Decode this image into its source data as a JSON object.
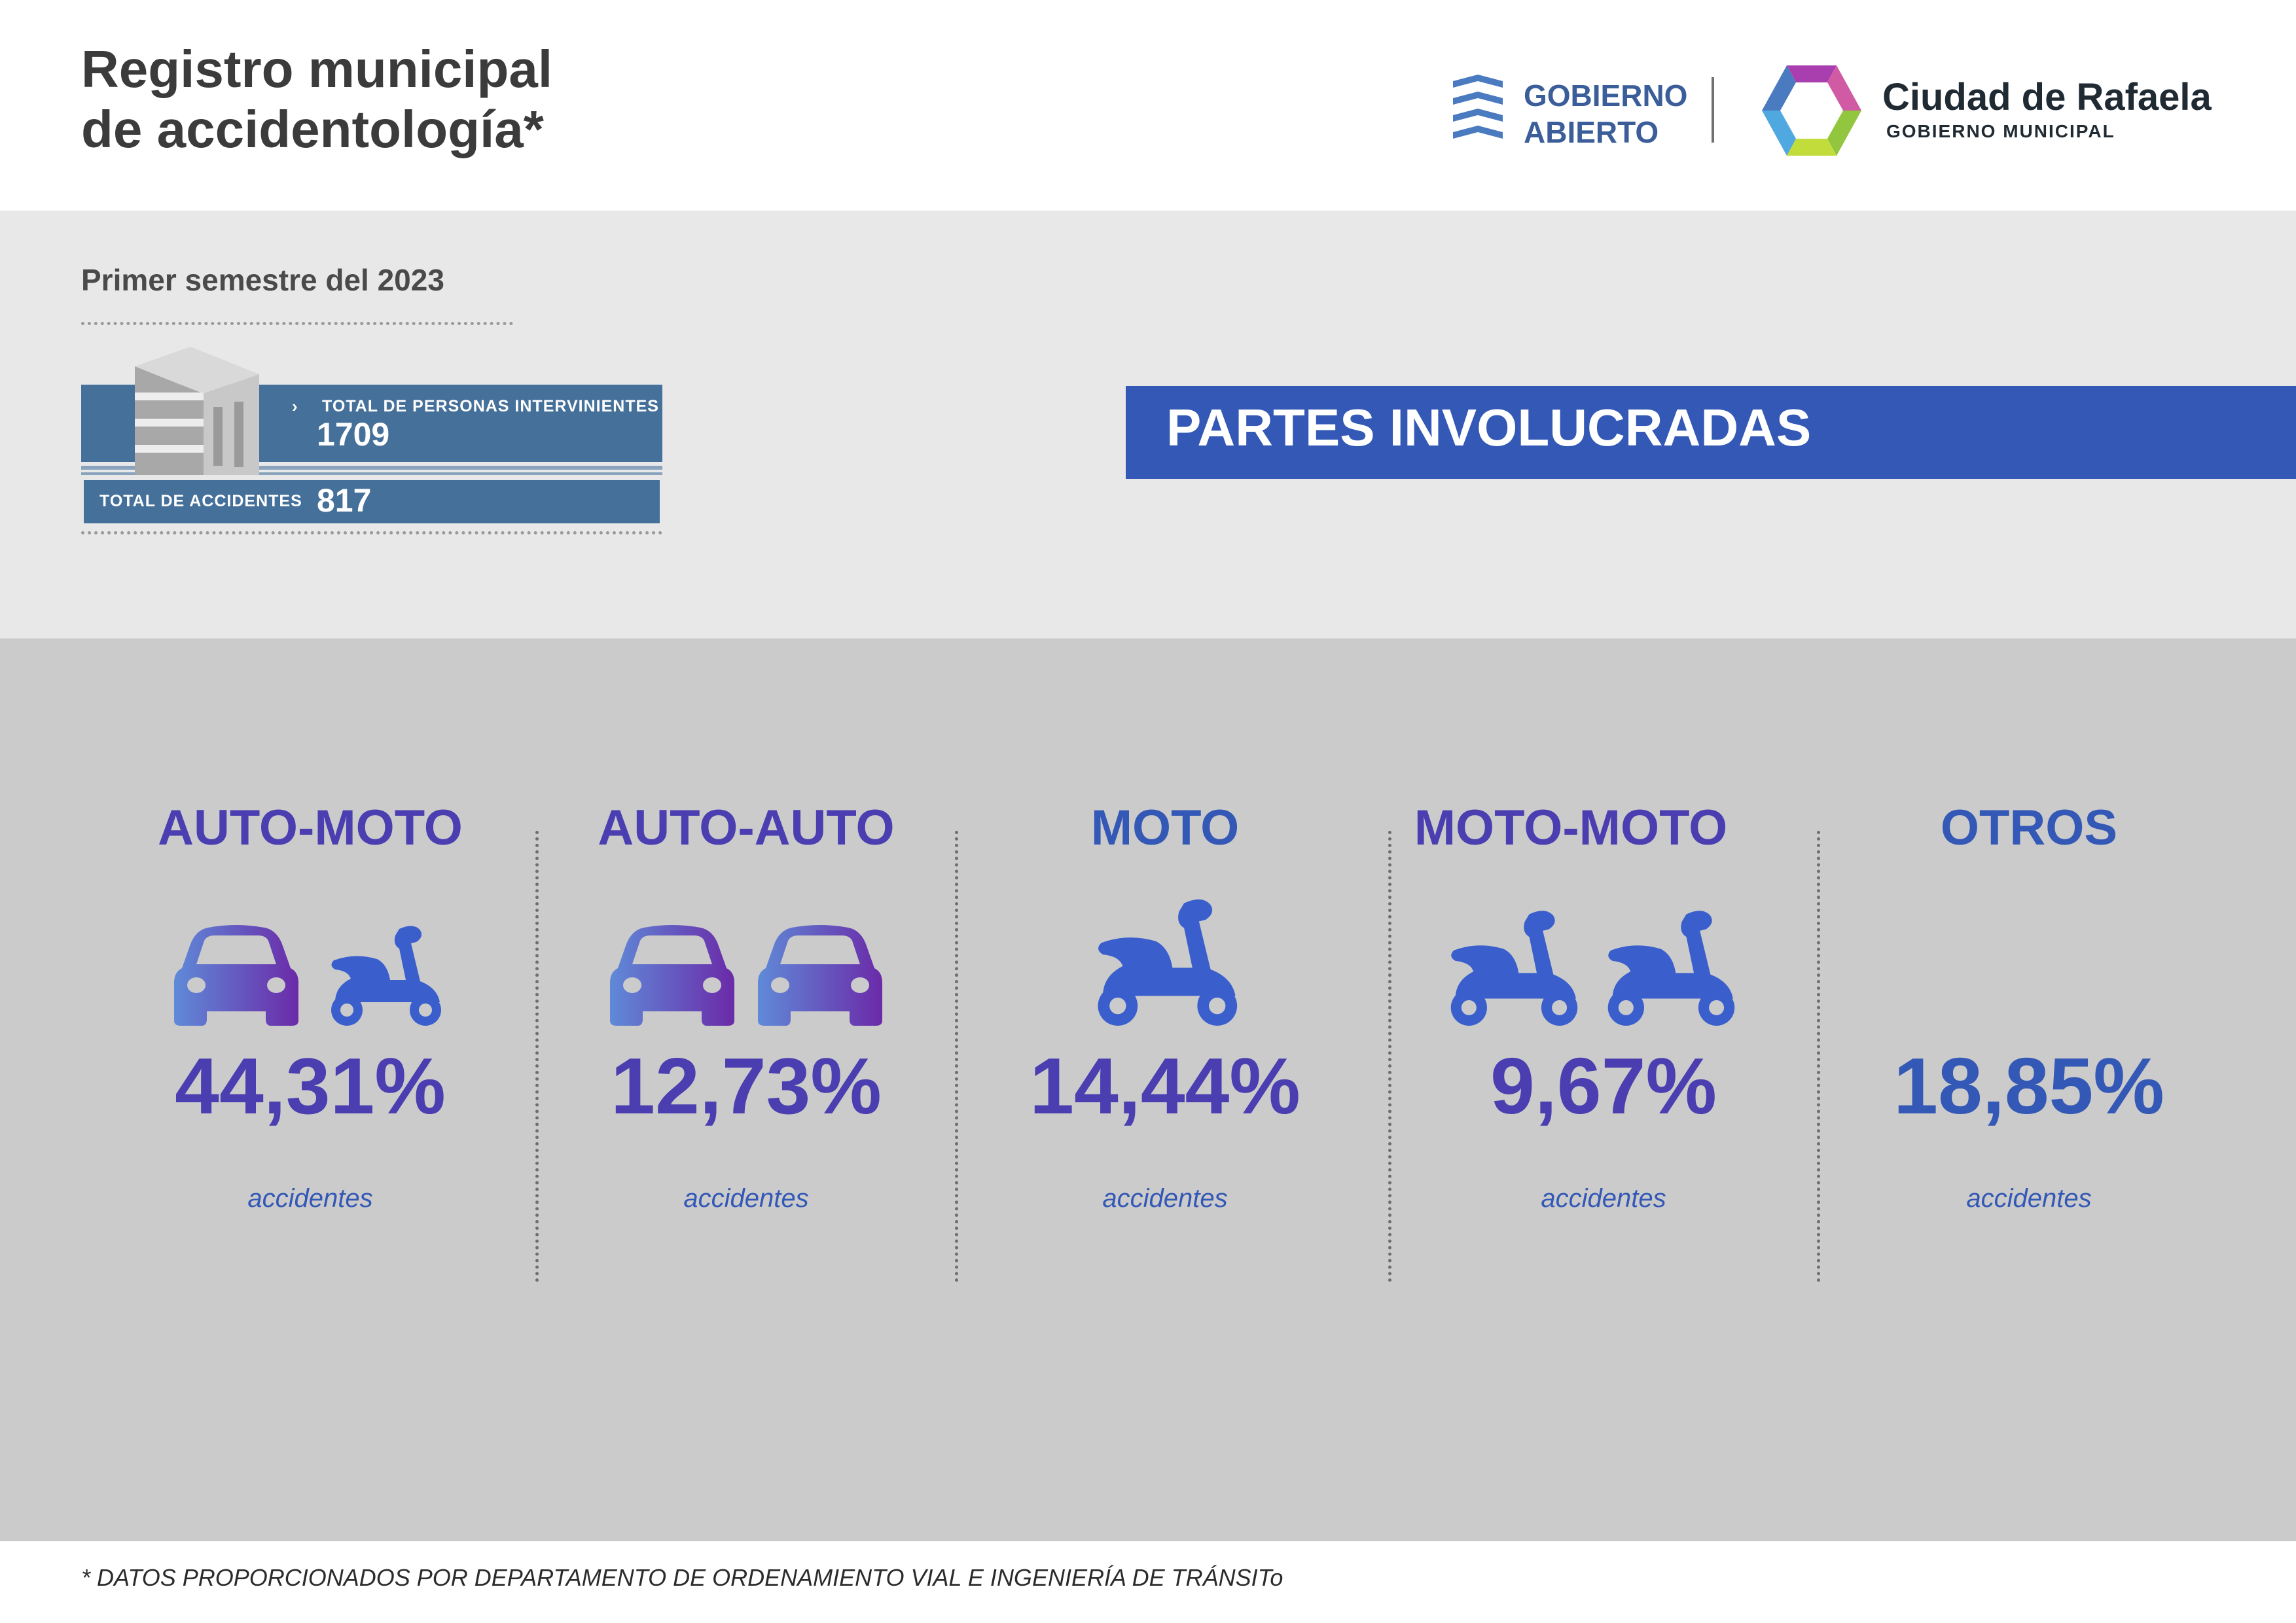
{
  "header": {
    "title_lines": [
      "Registro municipal",
      "de accidentología*"
    ],
    "gobierno_abierto": [
      "GOBIERNO",
      "ABIERTO"
    ],
    "ciudad_name": "Ciudad de Rafaela",
    "ciudad_sub": "GOBIERNO MUNICIPAL"
  },
  "summary": {
    "period": "Primer semestre del 2023",
    "persons_chevron": "›",
    "persons_label": "TOTAL DE PERSONAS INTERVINIENTES",
    "persons_value": "1709",
    "accidents_label": "TOTAL DE ACCIDENTES",
    "accidents_value": "817"
  },
  "section_title": "PARTES INVOLUCRADAS",
  "categories": [
    {
      "label": "AUTO-MOTO",
      "percent": "44,31%",
      "caption": "accidentes",
      "icons": [
        "car-icon",
        "scooter-icon"
      ]
    },
    {
      "label": "AUTO-AUTO",
      "percent": "12,73%",
      "caption": "accidentes",
      "icons": [
        "car-icon",
        "car-icon"
      ]
    },
    {
      "label": "MOTO",
      "percent": "14,44%",
      "caption": "accidentes",
      "icons": [
        "scooter-icon"
      ]
    },
    {
      "label": "MOTO-MOTO",
      "percent": "9,67%",
      "caption": "accidentes",
      "icons": [
        "scooter-icon",
        "scooter-icon"
      ]
    },
    {
      "label": "OTROS",
      "percent": "18,85%",
      "caption": "accidentes",
      "icons": []
    }
  ],
  "colors": {
    "purple_text": "#4a3eb0",
    "blue_text": "#3358b5",
    "banner": "#3358b5",
    "summary_box": "#44709a"
  },
  "footnote": "* DATOS PROPORCIONADOS POR DEPARTAMENTO DE ORDENAMIENTO VIAL E INGENIERÍA DE TRÁNSITo"
}
